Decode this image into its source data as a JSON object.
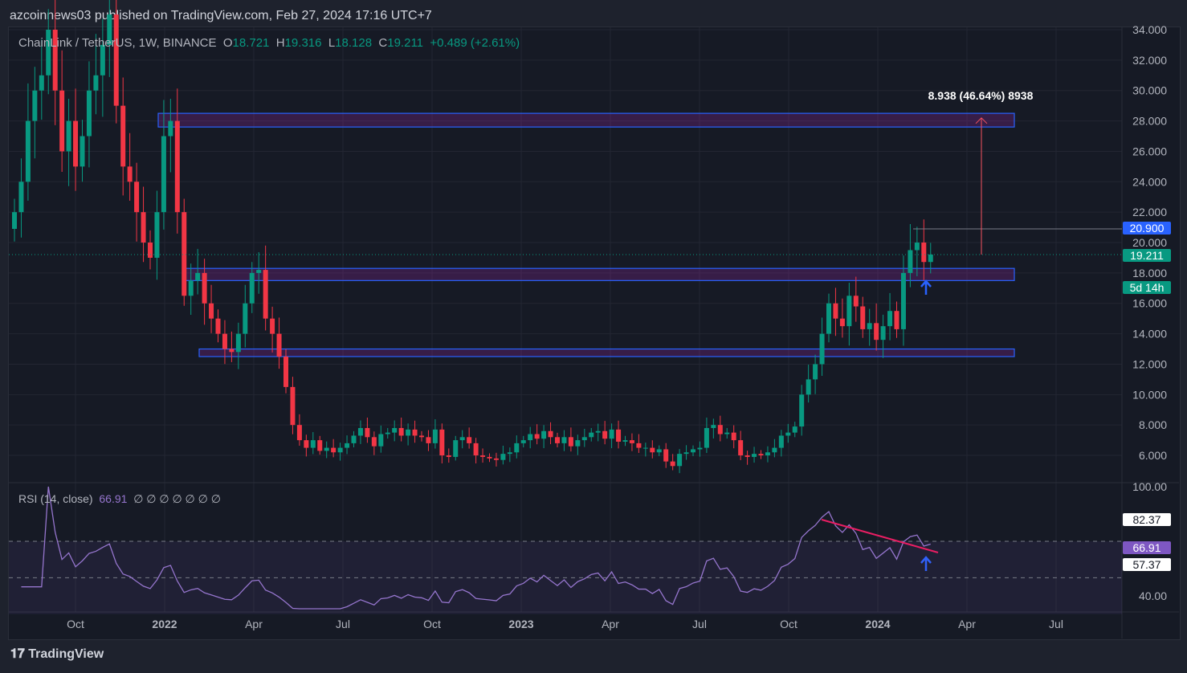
{
  "publish_line": "azcoinnews03 published on TradingView.com, Feb 27, 2024 17:16 UTC+7",
  "legend": {
    "symbol": "ChainLink / TetherUS, 1W, BINANCE",
    "o_label": "O",
    "o": "18.721",
    "h_label": "H",
    "h": "19.316",
    "l_label": "L",
    "l": "18.128",
    "c_label": "C",
    "c": "19.211",
    "change": "+0.489 (+2.61%)"
  },
  "rsi_legend": {
    "name": "RSI (14, close)",
    "value": "66.91",
    "extras": "∅ ∅ ∅ ∅ ∅ ∅ ∅"
  },
  "price_tags": {
    "level": "20.900",
    "last": "19.211",
    "countdown": "5d 14h"
  },
  "rsi_tags": {
    "high": "82.37",
    "current": "66.91",
    "low": "57.37"
  },
  "measure_label": "8.938 (46.64%) 8938",
  "logo": "TradingView",
  "colors": {
    "up": "#089981",
    "down": "#f23645",
    "rsi": "#9575cd",
    "zone": "#2962ff"
  },
  "chart_data": {
    "type": "candlestick",
    "interval": "1W",
    "price_axis": [
      "34.000",
      "32.000",
      "30.000",
      "28.000",
      "26.000",
      "24.000",
      "22.000",
      "20.000",
      "18.000",
      "16.000",
      "14.000",
      "12.000",
      "10.000",
      "8.000",
      "6.000"
    ],
    "rsi_axis": [
      "100.00",
      "40.00"
    ],
    "time_axis": [
      "Oct",
      "2022",
      "Apr",
      "Jul",
      "Oct",
      "2023",
      "Apr",
      "Jul",
      "Oct",
      "2024",
      "Apr",
      "Jul"
    ],
    "ylim": [
      6,
      34
    ],
    "zones": [
      [
        27.6,
        28.5
      ],
      [
        17.5,
        18.3
      ],
      [
        12.5,
        13.0
      ]
    ],
    "closes": [
      22,
      24,
      28,
      30,
      31,
      34,
      30,
      26,
      28,
      25,
      27,
      30,
      31,
      33,
      35,
      29,
      25,
      24,
      22,
      20,
      19,
      22,
      27,
      28,
      22,
      16.5,
      17.5,
      18,
      16,
      15,
      14,
      13,
      12.8,
      14,
      16,
      18,
      18.2,
      15,
      14,
      12.5,
      10.5,
      8,
      7,
      6.5,
      7,
      6.3,
      6.5,
      6.2,
      6.5,
      6.8,
      7.3,
      7.8,
      7.2,
      6.6,
      7.4,
      7.5,
      7.8,
      7.3,
      7.7,
      7.3,
      7.2,
      6.8,
      7.7,
      6,
      5.9,
      7,
      7.2,
      6.8,
      6,
      5.9,
      5.8,
      5.7,
      6.1,
      6.2,
      6.8,
      7,
      7.4,
      7.1,
      7.6,
      7.2,
      6.8,
      7.2,
      6.6,
      7,
      7.2,
      7.5,
      7.6,
      7.1,
      7.7,
      6.9,
      7,
      6.8,
      6.5,
      6.5,
      6.2,
      6.4,
      5.6,
      5.3,
      6.1,
      6.2,
      6.4,
      6.5,
      7.8,
      8,
      7.4,
      7.5,
      7,
      6,
      5.9,
      6.1,
      6,
      6.2,
      6.5,
      7.3,
      7.5,
      7.9,
      10,
      11,
      12,
      14,
      16,
      15,
      14.5,
      16.5,
      15.8,
      14.3,
      14.7,
      13.6,
      14.5,
      15.5,
      14.3,
      18,
      19.5,
      20,
      18.721,
      19.211
    ]
  }
}
